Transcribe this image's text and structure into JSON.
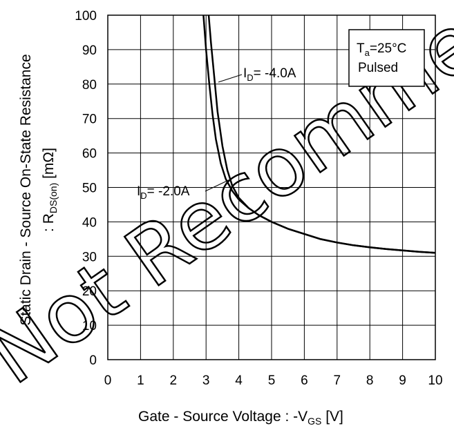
{
  "chart_data": {
    "type": "line",
    "xlabel": {
      "main": "Gate - Source Voltage : -V",
      "sub": "GS",
      "unit": " [V]"
    },
    "ylabel": {
      "line1": "Static Drain - Source On-State Resistance",
      "line2_prefix": ": R",
      "line2_sub": "DS(on)",
      "line2_unit": " [mΩ]"
    },
    "xlim": [
      0,
      10
    ],
    "ylim": [
      0,
      100
    ],
    "x_ticks": [
      "0",
      "1",
      "2",
      "3",
      "4",
      "5",
      "6",
      "7",
      "8",
      "9",
      "10"
    ],
    "y_ticks": [
      "0",
      "10",
      "20",
      "30",
      "40",
      "50",
      "60",
      "70",
      "80",
      "90",
      "100"
    ],
    "grid": true,
    "legend_box": {
      "line1_main": "T",
      "line1_sub": "a",
      "line1_rest": "=25°C",
      "line2": "Pulsed"
    },
    "series": [
      {
        "name_main": "I",
        "name_sub": "D",
        "name_rest": "= -4.0A",
        "x": [
          3.08,
          3.15,
          3.25,
          3.35,
          3.5,
          3.65,
          3.8,
          4.0,
          4.3,
          4.6,
          5.0,
          5.5,
          6.0,
          6.5,
          7.0,
          7.5,
          8.0,
          8.5,
          9.0,
          9.5,
          10.0
        ],
        "y": [
          100,
          92,
          82,
          72,
          62,
          55,
          50.5,
          47,
          44,
          42,
          40,
          38,
          36.5,
          35,
          34,
          33.2,
          32.6,
          32.1,
          31.7,
          31.3,
          31
        ]
      },
      {
        "name_main": "I",
        "name_sub": "D",
        "name_rest": "= -2.0A",
        "x": [
          2.92,
          3.0,
          3.1,
          3.2,
          3.3,
          3.45,
          3.6,
          3.8,
          4.0,
          4.3,
          4.6,
          5.0,
          5.5,
          6.0,
          6.5,
          7.0,
          7.5,
          8.0,
          8.5,
          9.0,
          9.5,
          10.0
        ],
        "y": [
          100,
          90,
          80,
          71,
          64,
          57,
          52.5,
          49,
          46.5,
          44,
          42,
          40,
          38,
          36.5,
          35,
          34,
          33.2,
          32.6,
          32.1,
          31.7,
          31.3,
          31
        ]
      }
    ]
  },
  "watermark": "Not Recommended for New Designs"
}
